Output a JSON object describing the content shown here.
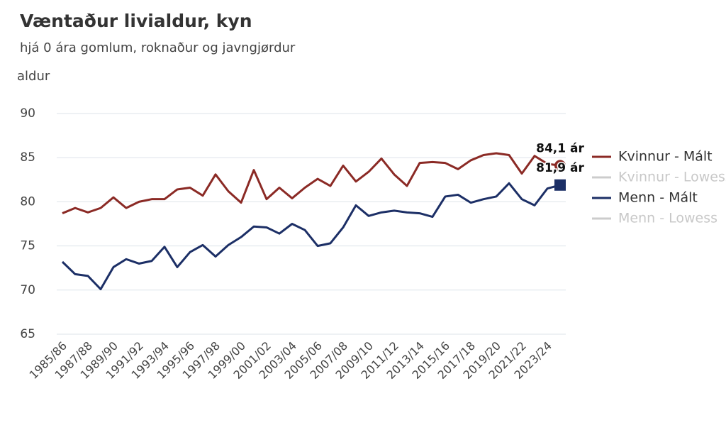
{
  "chart_data": {
    "type": "line",
    "title": "Væntaður livialdur, kyn",
    "subtitle": "hjá 0 ára gomlum, roknaður og javngjørdur",
    "y_label": "aldur",
    "categories": [
      "1985/86",
      null,
      "1987/88",
      null,
      "1989/90",
      null,
      "1991/92",
      null,
      "1993/94",
      null,
      "1995/96",
      null,
      "1997/98",
      null,
      "1999/00",
      null,
      "2001/02",
      null,
      "2003/04",
      null,
      "2005/06",
      null,
      "2007/08",
      null,
      "2009/10",
      null,
      "2011/12",
      null,
      "2013/14",
      null,
      "2015/16",
      null,
      "2017/18",
      null,
      "2019/20",
      null,
      "2021/22",
      null,
      "2023/24",
      null
    ],
    "ylim": [
      65,
      90
    ],
    "yticks": [
      65,
      70,
      75,
      80,
      85,
      90
    ],
    "grid": true,
    "legend": "right",
    "series": [
      {
        "name": "Kvinnur - Mált",
        "color": "#8b2a25",
        "values": [
          78.7,
          79.3,
          78.8,
          79.3,
          80.5,
          79.3,
          80.0,
          80.3,
          80.3,
          81.4,
          81.6,
          80.7,
          83.1,
          81.2,
          79.9,
          83.6,
          80.3,
          81.6,
          80.4,
          81.6,
          82.6,
          81.8,
          84.1,
          82.3,
          83.4,
          84.9,
          83.1,
          81.8,
          84.4,
          84.5,
          84.4,
          83.7,
          84.7,
          85.3,
          85.5,
          85.3,
          83.2,
          85.2,
          84.3,
          84.1
        ],
        "value_labels": [
          null,
          null,
          null,
          null,
          null,
          null,
          null,
          null,
          null,
          null,
          null,
          null,
          null,
          null,
          null,
          null,
          null,
          null,
          null,
          null,
          null,
          null,
          null,
          null,
          null,
          null,
          null,
          null,
          null,
          null,
          null,
          null,
          null,
          null,
          null,
          null,
          null,
          null,
          null,
          "84,1 ár"
        ]
      },
      {
        "name": "Kvinnur - Lowess",
        "color": "#cccccc",
        "hidden": true
      },
      {
        "name": "Menn - Mált",
        "color": "#1c2f66",
        "values": [
          73.2,
          71.8,
          71.6,
          70.1,
          72.6,
          73.5,
          73.0,
          73.3,
          74.9,
          72.6,
          74.3,
          75.1,
          73.8,
          75.1,
          76.0,
          77.2,
          77.1,
          76.4,
          77.5,
          76.8,
          75.0,
          75.3,
          77.1,
          79.6,
          78.4,
          78.8,
          79.0,
          78.8,
          78.7,
          78.3,
          80.6,
          80.8,
          79.9,
          80.3,
          80.6,
          82.1,
          80.3,
          79.6,
          81.5,
          81.9
        ],
        "value_labels": [
          null,
          null,
          null,
          null,
          null,
          null,
          null,
          null,
          null,
          null,
          null,
          null,
          null,
          null,
          null,
          null,
          null,
          null,
          null,
          null,
          null,
          null,
          null,
          null,
          null,
          null,
          null,
          null,
          null,
          null,
          null,
          null,
          null,
          null,
          null,
          null,
          null,
          null,
          null,
          "81,9 ár"
        ]
      },
      {
        "name": "Menn - Lowess",
        "color": "#cccccc",
        "hidden": true
      }
    ]
  }
}
